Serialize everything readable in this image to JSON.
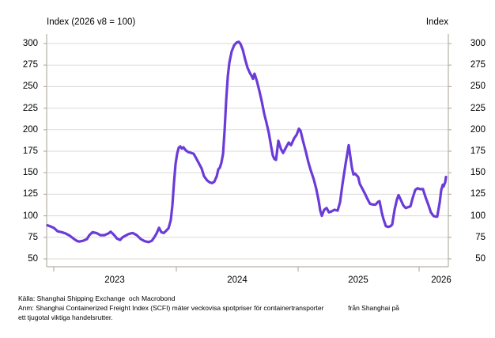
{
  "header": {
    "title_left": "Index (2026 v8 = 100)",
    "title_right": "Index"
  },
  "chart_data": {
    "type": "line",
    "title": "Index (2026 v8 = 100)",
    "right_axis_title": "Index",
    "ylim": [
      50,
      300
    ],
    "y_ticks": [
      300,
      275,
      250,
      225,
      200,
      175,
      150,
      125,
      100,
      75,
      50
    ],
    "x_tick_labels": [
      "2023",
      "2024",
      "2025",
      "2026"
    ],
    "x_range_years": [
      2022.94,
      2026.24
    ],
    "grid": "horizontal-only",
    "legend_position": "none",
    "line_color": "#6B3BD8",
    "grid_color": "#DCDAD6",
    "axis_color": "#B6AFA7",
    "series": [
      {
        "name": "SCFI spotpriser (index)",
        "points": [
          [
            2022.948,
            89
          ],
          [
            2022.968,
            88
          ],
          [
            2023.0,
            86
          ],
          [
            2023.032,
            82
          ],
          [
            2023.065,
            81
          ],
          [
            2023.097,
            79.5
          ],
          [
            2023.13,
            77
          ],
          [
            2023.162,
            73.5
          ],
          [
            2023.188,
            71
          ],
          [
            2023.208,
            70
          ],
          [
            2023.24,
            71
          ],
          [
            2023.273,
            73
          ],
          [
            2023.292,
            77.5
          ],
          [
            2023.318,
            81
          ],
          [
            2023.351,
            80
          ],
          [
            2023.383,
            77.5
          ],
          [
            2023.416,
            77.5
          ],
          [
            2023.448,
            79.5
          ],
          [
            2023.468,
            81.5
          ],
          [
            2023.5,
            77
          ],
          [
            2023.519,
            73.5
          ],
          [
            2023.545,
            72
          ],
          [
            2023.565,
            75
          ],
          [
            2023.584,
            76.5
          ],
          [
            2023.61,
            78.5
          ],
          [
            2023.63,
            79.5
          ],
          [
            2023.649,
            80
          ],
          [
            2023.682,
            77.5
          ],
          [
            2023.714,
            73
          ],
          [
            2023.747,
            70.5
          ],
          [
            2023.779,
            69.5
          ],
          [
            2023.805,
            71
          ],
          [
            2023.825,
            75
          ],
          [
            2023.844,
            79.5
          ],
          [
            2023.864,
            86
          ],
          [
            2023.883,
            81
          ],
          [
            2023.903,
            80
          ],
          [
            2023.922,
            82.5
          ],
          [
            2023.942,
            85.5
          ],
          [
            2023.961,
            95
          ],
          [
            2023.974,
            112
          ],
          [
            2023.987,
            138
          ],
          [
            2024.0,
            160
          ],
          [
            2024.013,
            172
          ],
          [
            2024.026,
            179
          ],
          [
            2024.039,
            180.5
          ],
          [
            2024.052,
            178
          ],
          [
            2024.065,
            179.5
          ],
          [
            2024.084,
            176
          ],
          [
            2024.104,
            174
          ],
          [
            2024.13,
            173
          ],
          [
            2024.149,
            172
          ],
          [
            2024.169,
            167
          ],
          [
            2024.195,
            160
          ],
          [
            2024.214,
            155
          ],
          [
            2024.234,
            146
          ],
          [
            2024.26,
            141
          ],
          [
            2024.279,
            139
          ],
          [
            2024.299,
            138
          ],
          [
            2024.318,
            139.5
          ],
          [
            2024.338,
            146
          ],
          [
            2024.351,
            154
          ],
          [
            2024.364,
            156
          ],
          [
            2024.377,
            162
          ],
          [
            2024.39,
            172
          ],
          [
            2024.403,
            200
          ],
          [
            2024.416,
            235
          ],
          [
            2024.429,
            262
          ],
          [
            2024.442,
            278
          ],
          [
            2024.461,
            291
          ],
          [
            2024.481,
            298
          ],
          [
            2024.5,
            301
          ],
          [
            2024.519,
            302
          ],
          [
            2024.532,
            300
          ],
          [
            2024.552,
            293
          ],
          [
            2024.571,
            282
          ],
          [
            2024.591,
            272
          ],
          [
            2024.61,
            266
          ],
          [
            2024.623,
            263
          ],
          [
            2024.636,
            259
          ],
          [
            2024.649,
            265
          ],
          [
            2024.669,
            256
          ],
          [
            2024.688,
            245
          ],
          [
            2024.708,
            233
          ],
          [
            2024.727,
            219
          ],
          [
            2024.747,
            208
          ],
          [
            2024.766,
            196
          ],
          [
            2024.786,
            180
          ],
          [
            2024.799,
            170
          ],
          [
            2024.812,
            166
          ],
          [
            2024.825,
            165
          ],
          [
            2024.844,
            187
          ],
          [
            2024.864,
            178
          ],
          [
            2024.883,
            173
          ],
          [
            2024.909,
            180
          ],
          [
            2024.929,
            185
          ],
          [
            2024.948,
            182
          ],
          [
            2024.974,
            190
          ],
          [
            2024.994,
            194
          ],
          [
            2025.013,
            201
          ],
          [
            2025.026,
            199
          ],
          [
            2025.045,
            188
          ],
          [
            2025.071,
            174
          ],
          [
            2025.091,
            162
          ],
          [
            2025.11,
            153
          ],
          [
            2025.136,
            142
          ],
          [
            2025.156,
            131
          ],
          [
            2025.175,
            118
          ],
          [
            2025.188,
            106
          ],
          [
            2025.201,
            100
          ],
          [
            2025.221,
            107
          ],
          [
            2025.24,
            109
          ],
          [
            2025.26,
            104
          ],
          [
            2025.279,
            105
          ],
          [
            2025.305,
            107
          ],
          [
            2025.331,
            106
          ],
          [
            2025.351,
            116
          ],
          [
            2025.37,
            136
          ],
          [
            2025.396,
            160
          ],
          [
            2025.409,
            171
          ],
          [
            2025.422,
            182
          ],
          [
            2025.435,
            169
          ],
          [
            2025.448,
            156
          ],
          [
            2025.461,
            148
          ],
          [
            2025.474,
            149
          ],
          [
            2025.487,
            147
          ],
          [
            2025.5,
            145
          ],
          [
            2025.513,
            137
          ],
          [
            2025.532,
            132
          ],
          [
            2025.558,
            125
          ],
          [
            2025.578,
            119
          ],
          [
            2025.597,
            114
          ],
          [
            2025.623,
            113
          ],
          [
            2025.643,
            113
          ],
          [
            2025.662,
            116
          ],
          [
            2025.675,
            117
          ],
          [
            2025.695,
            103
          ],
          [
            2025.708,
            96
          ],
          [
            2025.727,
            88
          ],
          [
            2025.747,
            87
          ],
          [
            2025.766,
            88
          ],
          [
            2025.779,
            90
          ],
          [
            2025.799,
            107
          ],
          [
            2025.818,
            119
          ],
          [
            2025.831,
            124
          ],
          [
            2025.851,
            118
          ],
          [
            2025.87,
            112
          ],
          [
            2025.89,
            109
          ],
          [
            2025.909,
            110
          ],
          [
            2025.929,
            111
          ],
          [
            2025.948,
            121
          ],
          [
            2025.968,
            130
          ],
          [
            2025.987,
            132
          ],
          [
            2026.006,
            131
          ],
          [
            2026.032,
            131
          ],
          [
            2026.052,
            122
          ],
          [
            2026.078,
            112
          ],
          [
            2026.097,
            104
          ],
          [
            2026.117,
            100
          ],
          [
            2026.136,
            99
          ],
          [
            2026.149,
            99
          ],
          [
            2026.169,
            115
          ],
          [
            2026.182,
            130
          ],
          [
            2026.195,
            136
          ],
          [
            2026.201,
            134
          ],
          [
            2026.214,
            139
          ],
          [
            2026.221,
            145
          ]
        ]
      }
    ]
  },
  "footer": {
    "source": "Källa: Shanghai Shipping Exchange  och Macrobond",
    "note_line1": "Anm: Shanghai Containerized Freight Index (SCFI) mäter veckovisa spotpriser för containertransporter             från Shanghai på",
    "note_line2": "ett tjugotal viktiga handelsrutter."
  }
}
